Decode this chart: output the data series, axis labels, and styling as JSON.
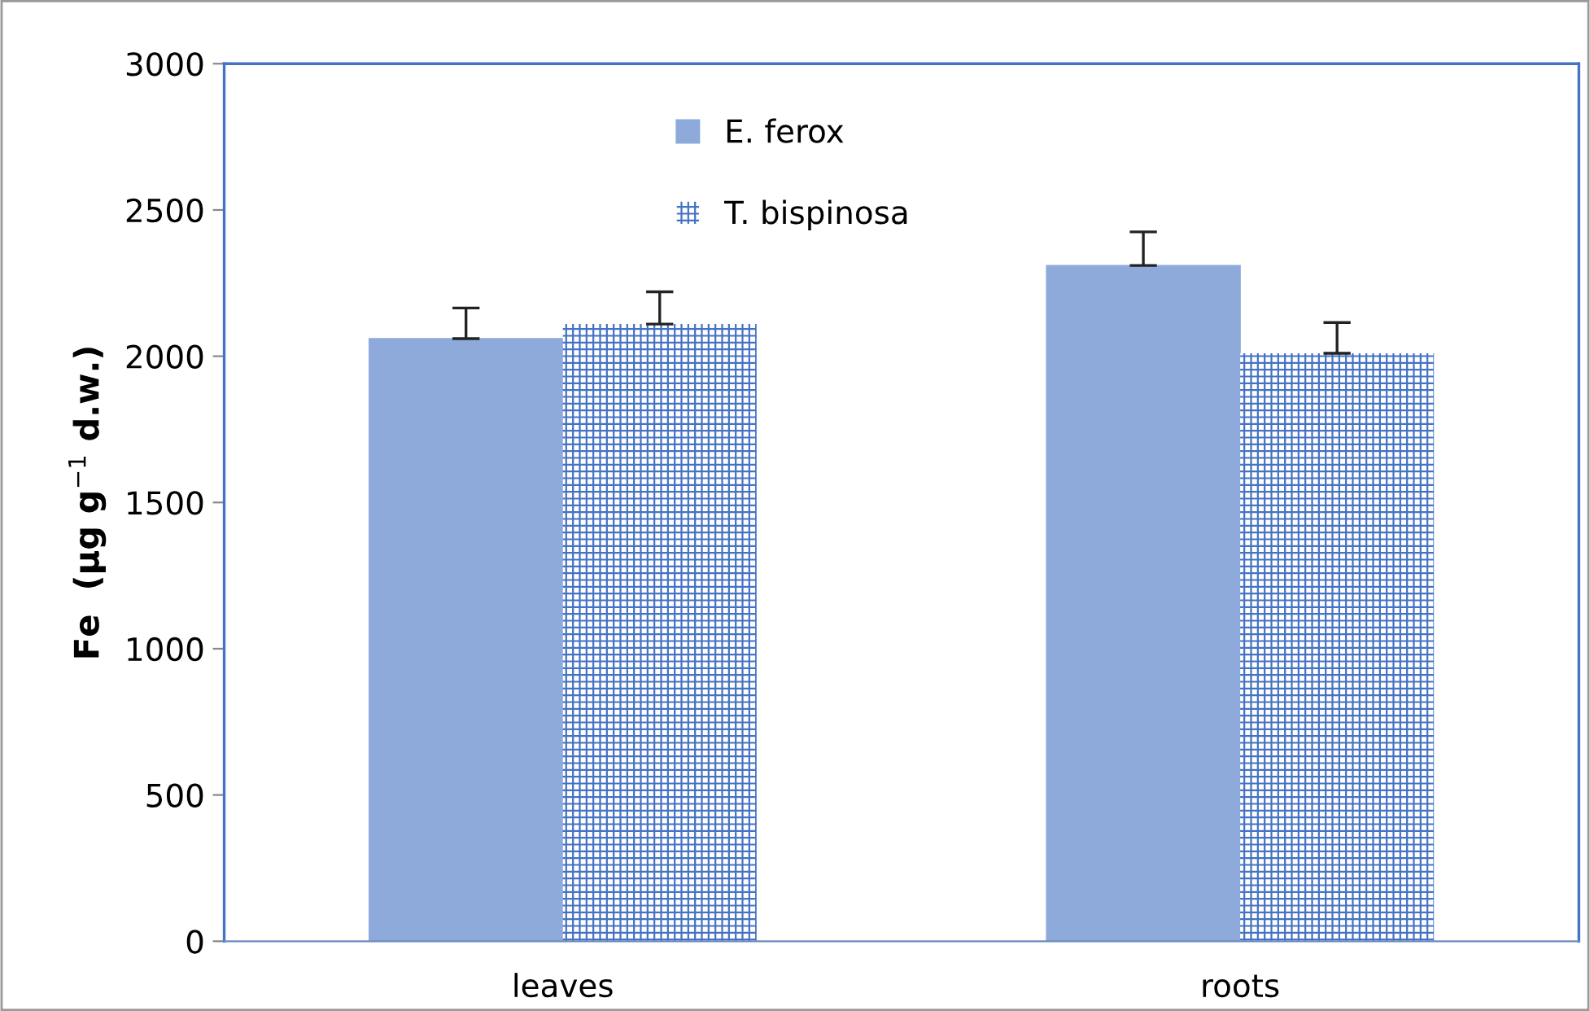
{
  "chart_data": {
    "type": "bar",
    "ylabel": "Fe  (µg g$^{−1}$ d.w.)",
    "categories": [
      "leaves",
      "roots"
    ],
    "series": [
      {
        "name": "E. ferox",
        "color": "#8eaadb",
        "values": [
          2060,
          2310
        ],
        "errors": [
          [
            2060,
            2165
          ],
          [
            2310,
            2425
          ]
        ]
      },
      {
        "name": "T. bispinosa",
        "color": "#4472c4",
        "values": [
          2110,
          2010
        ],
        "errors": [
          [
            2110,
            2220
          ],
          [
            2010,
            2115
          ]
        ]
      }
    ],
    "ylim": [
      0,
      3000
    ],
    "yticks": [
      0,
      500,
      1000,
      1500,
      2000,
      2500,
      3000
    ],
    "grid": false,
    "legend": "top"
  }
}
